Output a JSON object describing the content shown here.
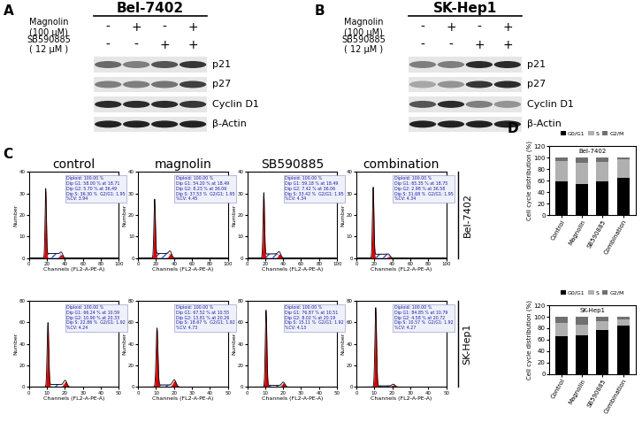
{
  "panel_labels": [
    "A",
    "B",
    "C",
    "D"
  ],
  "western_blots": [
    {
      "cell_line": "Bel-7402",
      "treatments": [
        {
          "name": "Magnolin\n(100 μM)",
          "signs": [
            "-",
            "+",
            "-",
            "+"
          ]
        },
        {
          "name": "SB590885\n( 12 μM )",
          "signs": [
            "-",
            "-",
            "+",
            "+"
          ]
        }
      ],
      "proteins": [
        {
          "name": "p21",
          "band_intensity": [
            0.6,
            0.5,
            0.7,
            0.85
          ]
        },
        {
          "name": "p27",
          "band_intensity": [
            0.5,
            0.5,
            0.55,
            0.8
          ]
        },
        {
          "name": "Cyclin D1",
          "band_intensity": [
            0.9,
            0.9,
            0.9,
            0.85
          ]
        },
        {
          "name": "β-Actin",
          "band_intensity": [
            0.95,
            0.95,
            0.95,
            0.95
          ]
        }
      ]
    },
    {
      "cell_line": "SK-Hep1",
      "treatments": [
        {
          "name": "Magnolin\n(100 μM)",
          "signs": [
            "-",
            "+",
            "-",
            "+"
          ]
        },
        {
          "name": "SB590885\n( 12 μM )",
          "signs": [
            "-",
            "-",
            "+",
            "+"
          ]
        }
      ],
      "proteins": [
        {
          "name": "p21",
          "band_intensity": [
            0.5,
            0.5,
            0.9,
            0.9
          ]
        },
        {
          "name": "p27",
          "band_intensity": [
            0.3,
            0.4,
            0.85,
            0.9
          ]
        },
        {
          "name": "Cyclin D1",
          "band_intensity": [
            0.7,
            0.9,
            0.5,
            0.4
          ]
        },
        {
          "name": "β-Actin",
          "band_intensity": [
            0.95,
            0.95,
            0.95,
            0.95
          ]
        }
      ]
    }
  ],
  "flow_cytometry": {
    "conditions": [
      "control",
      "magnolin",
      "SB590885",
      "combination"
    ],
    "x_label": "Channels (FL2-A-PE-A)",
    "y_label": "Number",
    "rows": [
      {
        "cell_line": "Bel-7402",
        "xlim": [
          0,
          100
        ],
        "xticks": [
          0,
          20,
          40,
          60,
          80,
          100
        ],
        "ylim": [
          0,
          40
        ],
        "yticks": [
          0,
          10,
          20,
          30,
          40
        ],
        "panels": [
          {
            "g1_percent": 58.0,
            "g1_mean": 18.71,
            "g2_percent": 5.7,
            "g2_mean": 36.49,
            "s_percent": 36.3,
            "cv": 3.94,
            "info_lines": [
              "Diploid: 100.00 %",
              "Dip G1: 58.00 % at 18.71",
              "Dip G2: 5.70 % at 36.49",
              "Dip S: 36.30 %  G2/G1: 1.95",
              "%CV: 3.94"
            ]
          },
          {
            "g1_percent": 54.2,
            "g1_mean": 18.49,
            "g2_percent": 8.23,
            "g2_mean": 36.06,
            "s_percent": 37.53,
            "cv": 4.45,
            "info_lines": [
              "Diploid: 100.00 %",
              "Dip G1: 54.20 % at 18.49",
              "Dip G2: 8.23 % at 36.06",
              "Dip S: 37.53 %  G2/G1: 1.95",
              "%CV: 4.45"
            ]
          },
          {
            "g1_percent": 59.18,
            "g1_mean": 18.49,
            "g2_percent": 7.42,
            "g2_mean": 36.06,
            "s_percent": 33.42,
            "cv": 4.34,
            "info_lines": [
              "Diploid: 100.00 %",
              "Dip G1: 59.18 % at 18.49",
              "Dip G2: 7.42 % at 36.06",
              "Dip S: 33.42 %  G2/G1: 1.95",
              "%CV: 4.34"
            ]
          },
          {
            "g1_percent": 65.35,
            "g1_mean": 18.75,
            "g2_percent": 2.98,
            "g2_mean": 36.58,
            "s_percent": 31.68,
            "cv": 4.34,
            "info_lines": [
              "Diploid: 100.00 %",
              "Dip G1: 65.35 % at 18.75",
              "Dip G2: 2.98 % at 36.58",
              "Dip S: 31.68 %  G2/G1: 1.95",
              "%CV: 4.34"
            ]
          }
        ]
      },
      {
        "cell_line": "SK-Hep1",
        "xlim": [
          0,
          50
        ],
        "xticks": [
          0,
          10,
          20,
          30,
          40,
          50
        ],
        "ylim": [
          0,
          80
        ],
        "yticks": [
          0,
          20,
          40,
          60,
          80
        ],
        "panels": [
          {
            "g1_percent": 66.24,
            "g1_mean": 10.59,
            "g2_percent": 10.9,
            "g2_mean": 20.33,
            "s_percent": 22.86,
            "cv": 4.24,
            "info_lines": [
              "Diploid: 100.00 %",
              "Dip G1: 66.24 % at 10.59",
              "Dip G2: 10.90 % at 20.33",
              "Dip S: 22.86 %  G2/G1: 1.92",
              "%CV: 4.24"
            ]
          },
          {
            "g1_percent": 67.52,
            "g1_mean": 10.55,
            "g2_percent": 13.81,
            "g2_mean": 20.26,
            "s_percent": 18.67,
            "cv": 4.73,
            "info_lines": [
              "Diploid: 100.00 %",
              "Dip G1: 67.52 % at 10.55",
              "Dip G2: 13.81 % at 20.26",
              "Dip S: 18.67 %  G2/G1: 1.92",
              "%CV: 4.73"
            ]
          },
          {
            "g1_percent": 76.87,
            "g1_mean": 10.51,
            "g2_percent": 8.02,
            "g2_mean": 20.19,
            "s_percent": 15.11,
            "cv": 4.13,
            "info_lines": [
              "Diploid: 100.00 %",
              "Dip G1: 76.87 % at 10.51",
              "Dip G2: 8.02 % at 20.19",
              "Dip S: 15.11 %  G2/G1: 1.92",
              "%CV: 4.13"
            ]
          },
          {
            "g1_percent": 84.85,
            "g1_mean": 10.79,
            "g2_percent": 4.58,
            "g2_mean": 20.72,
            "s_percent": 10.57,
            "cv": 4.27,
            "info_lines": [
              "Diploid: 100.00 %",
              "Dip G1: 84.85 % at 10.79",
              "Dip G2: 4.58 % at 20.72",
              "Dip S: 10.57 %  G2/G1: 1.92",
              "%CV: 4.27"
            ]
          }
        ]
      }
    ]
  },
  "chart_data": [
    {
      "type": "bar",
      "stacked": true,
      "title": "Bel-7402",
      "y_label": "Cell cycle distribution (%)",
      "categories": [
        "Control",
        "Magnolin",
        "SB590885",
        "Combination"
      ],
      "series": [
        {
          "name": "G0/G1",
          "color": "#000000",
          "values": [
            58.0,
            54.2,
            59.18,
            65.35
          ]
        },
        {
          "name": "S",
          "color": "#b0b0b0",
          "values": [
            36.3,
            37.53,
            33.42,
            31.68
          ]
        },
        {
          "name": "G2/M",
          "color": "#707070",
          "values": [
            5.7,
            8.23,
            7.42,
            2.98
          ]
        }
      ],
      "ylim": [
        0,
        120
      ],
      "yticks": [
        0,
        20,
        40,
        60,
        80,
        100,
        120
      ],
      "legend": "upper center"
    },
    {
      "type": "bar",
      "stacked": true,
      "title": "SK-Hep1",
      "y_label": "Cell cycle distribution (%)",
      "categories": [
        "Control",
        "Magnolin",
        "SB590885",
        "Combination"
      ],
      "series": [
        {
          "name": "G0/G1",
          "color": "#000000",
          "values": [
            66.24,
            67.52,
            76.87,
            84.85
          ]
        },
        {
          "name": "S",
          "color": "#b0b0b0",
          "values": [
            22.86,
            18.67,
            15.11,
            10.57
          ]
        },
        {
          "name": "G2/M",
          "color": "#707070",
          "values": [
            10.9,
            13.81,
            8.02,
            4.58
          ]
        }
      ],
      "ylim": [
        0,
        120
      ],
      "yticks": [
        0,
        20,
        40,
        60,
        80,
        100,
        120
      ],
      "legend": "upper center"
    }
  ]
}
